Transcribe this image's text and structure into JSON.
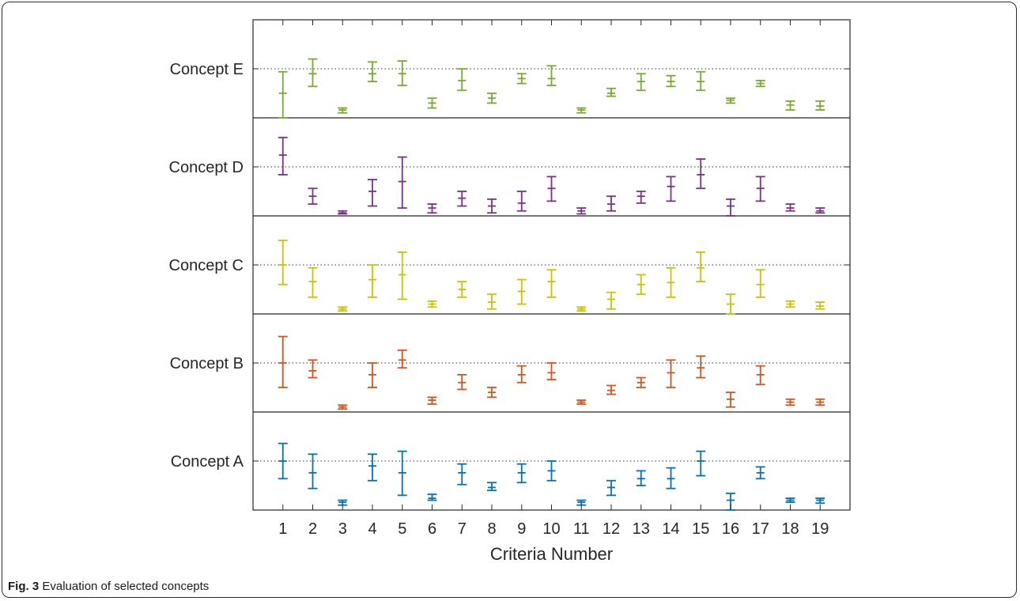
{
  "caption": {
    "label": "Fig. 3",
    "text": "Evaluation of selected concepts"
  },
  "chart_data": {
    "type": "errorbar",
    "xlabel": "Criteria Number",
    "x": [
      1,
      2,
      3,
      4,
      5,
      6,
      7,
      8,
      9,
      10,
      11,
      12,
      13,
      14,
      15,
      16,
      17,
      18,
      19
    ],
    "xlim": [
      0,
      20
    ],
    "grid": "dotted line at each concept center",
    "series": [
      {
        "name": "Concept A",
        "color": "#0072BD",
        "mean": [
          0.0,
          -0.12,
          -0.42,
          -0.05,
          -0.12,
          -0.38,
          -0.12,
          -0.27,
          -0.12,
          -0.1,
          -0.42,
          -0.27,
          -0.18,
          -0.18,
          0.0,
          -0.4,
          -0.12,
          -0.4,
          -0.4
        ],
        "lower": [
          -0.18,
          -0.28,
          -0.45,
          -0.2,
          -0.35,
          -0.4,
          -0.24,
          -0.3,
          -0.22,
          -0.2,
          -0.45,
          -0.35,
          -0.25,
          -0.28,
          -0.15,
          -0.5,
          -0.18,
          -0.42,
          -0.43
        ],
        "upper": [
          0.18,
          0.07,
          -0.4,
          0.07,
          0.1,
          -0.34,
          -0.03,
          -0.22,
          -0.03,
          0.0,
          -0.4,
          -0.2,
          -0.1,
          -0.07,
          0.1,
          -0.33,
          -0.06,
          -0.38,
          -0.38
        ]
      },
      {
        "name": "Concept B",
        "color": "#D95319",
        "mean": [
          0.0,
          -0.08,
          -0.45,
          -0.12,
          0.03,
          -0.38,
          -0.2,
          -0.3,
          -0.12,
          -0.1,
          -0.4,
          -0.28,
          -0.2,
          -0.1,
          -0.05,
          -0.37,
          -0.12,
          -0.4,
          -0.4
        ],
        "lower": [
          -0.25,
          -0.15,
          -0.47,
          -0.25,
          -0.05,
          -0.42,
          -0.27,
          -0.35,
          -0.2,
          -0.17,
          -0.42,
          -0.32,
          -0.25,
          -0.25,
          -0.15,
          -0.45,
          -0.22,
          -0.43,
          -0.43
        ],
        "upper": [
          0.27,
          0.03,
          -0.43,
          0.0,
          0.13,
          -0.35,
          -0.12,
          -0.25,
          -0.03,
          0.0,
          -0.38,
          -0.23,
          -0.15,
          0.03,
          0.07,
          -0.3,
          -0.03,
          -0.37,
          -0.37
        ]
      },
      {
        "name": "Concept C",
        "color": "#C9C400",
        "mean": [
          0.0,
          -0.17,
          -0.45,
          -0.15,
          -0.1,
          -0.4,
          -0.25,
          -0.38,
          -0.27,
          -0.17,
          -0.45,
          -0.35,
          -0.2,
          -0.18,
          -0.03,
          -0.4,
          -0.2,
          -0.4,
          -0.42
        ],
        "lower": [
          -0.2,
          -0.33,
          -0.47,
          -0.33,
          -0.35,
          -0.43,
          -0.33,
          -0.45,
          -0.4,
          -0.33,
          -0.47,
          -0.45,
          -0.3,
          -0.33,
          -0.17,
          -0.5,
          -0.33,
          -0.43,
          -0.45
        ],
        "upper": [
          0.25,
          -0.03,
          -0.43,
          0.0,
          0.13,
          -0.37,
          -0.17,
          -0.3,
          -0.15,
          -0.05,
          -0.43,
          -0.28,
          -0.1,
          -0.03,
          0.13,
          -0.3,
          -0.05,
          -0.37,
          -0.38
        ]
      },
      {
        "name": "Concept D",
        "color": "#7E2F8E",
        "mean": [
          0.12,
          -0.3,
          -0.47,
          -0.25,
          -0.15,
          -0.42,
          -0.32,
          -0.4,
          -0.37,
          -0.22,
          -0.45,
          -0.38,
          -0.3,
          -0.2,
          -0.08,
          -0.4,
          -0.22,
          -0.42,
          -0.45
        ],
        "lower": [
          -0.08,
          -0.38,
          -0.48,
          -0.4,
          -0.42,
          -0.47,
          -0.4,
          -0.47,
          -0.45,
          -0.35,
          -0.48,
          -0.45,
          -0.37,
          -0.35,
          -0.22,
          -0.5,
          -0.35,
          -0.45,
          -0.47
        ],
        "upper": [
          0.3,
          -0.22,
          -0.45,
          -0.13,
          0.1,
          -0.38,
          -0.25,
          -0.33,
          -0.25,
          -0.1,
          -0.42,
          -0.3,
          -0.25,
          -0.1,
          0.08,
          -0.33,
          -0.1,
          -0.38,
          -0.42
        ]
      },
      {
        "name": "Concept E",
        "color": "#77AC30",
        "mean": [
          -0.25,
          -0.05,
          -0.42,
          -0.05,
          -0.05,
          -0.35,
          -0.12,
          -0.3,
          -0.1,
          -0.1,
          -0.42,
          -0.25,
          -0.13,
          -0.13,
          -0.13,
          -0.32,
          -0.15,
          -0.37,
          -0.38
        ],
        "lower": [
          -0.5,
          -0.18,
          -0.45,
          -0.13,
          -0.17,
          -0.4,
          -0.22,
          -0.35,
          -0.15,
          -0.17,
          -0.45,
          -0.28,
          -0.22,
          -0.18,
          -0.22,
          -0.35,
          -0.18,
          -0.42,
          -0.42
        ],
        "upper": [
          -0.03,
          0.1,
          -0.4,
          0.07,
          0.08,
          -0.3,
          0.0,
          -0.25,
          -0.05,
          0.03,
          -0.4,
          -0.2,
          -0.05,
          -0.07,
          -0.03,
          -0.3,
          -0.12,
          -0.33,
          -0.33
        ]
      }
    ]
  }
}
